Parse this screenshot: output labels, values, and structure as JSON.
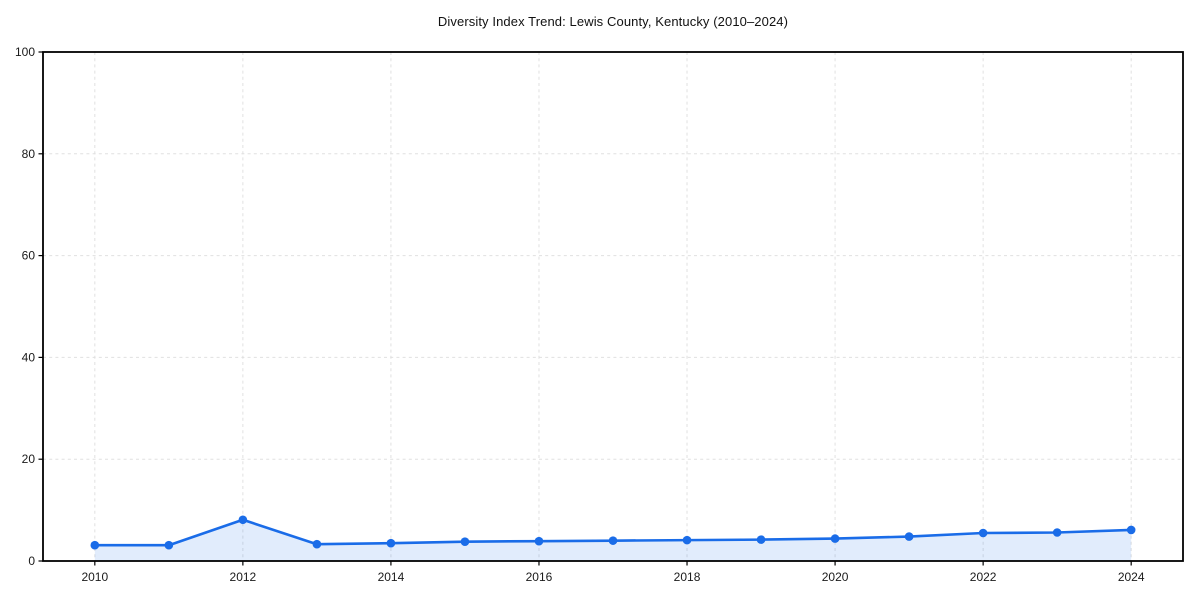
{
  "chart_data": {
    "type": "area",
    "title": "Diversity Index Trend: Lewis County, Kentucky (2010–2024)",
    "xlabel": "",
    "ylabel": "",
    "x": [
      2010,
      2011,
      2012,
      2013,
      2014,
      2015,
      2016,
      2017,
      2018,
      2019,
      2020,
      2021,
      2022,
      2023,
      2024
    ],
    "series": [
      {
        "name": "Diversity Index",
        "values": [
          3.1,
          3.1,
          8.1,
          3.3,
          3.5,
          3.8,
          3.9,
          4.0,
          4.1,
          4.2,
          4.4,
          4.8,
          5.5,
          5.6,
          6.1
        ]
      }
    ],
    "xlim": [
      2009.3,
      2024.7
    ],
    "ylim": [
      0,
      100
    ],
    "xticks": [
      2010,
      2012,
      2014,
      2016,
      2018,
      2020,
      2022,
      2024
    ],
    "yticks": [
      0,
      20,
      40,
      60,
      80,
      100
    ],
    "grid": true,
    "grid_style": "dashed",
    "legend": false,
    "colors": {
      "line": "#1a6ce8",
      "marker": "#1a6ce8",
      "fill": "#1a6ce8",
      "fill_opacity": 0.13,
      "grid": "#e0e0e0",
      "spine": "#000000",
      "text": "#1a1a1a",
      "background": "#ffffff"
    }
  }
}
